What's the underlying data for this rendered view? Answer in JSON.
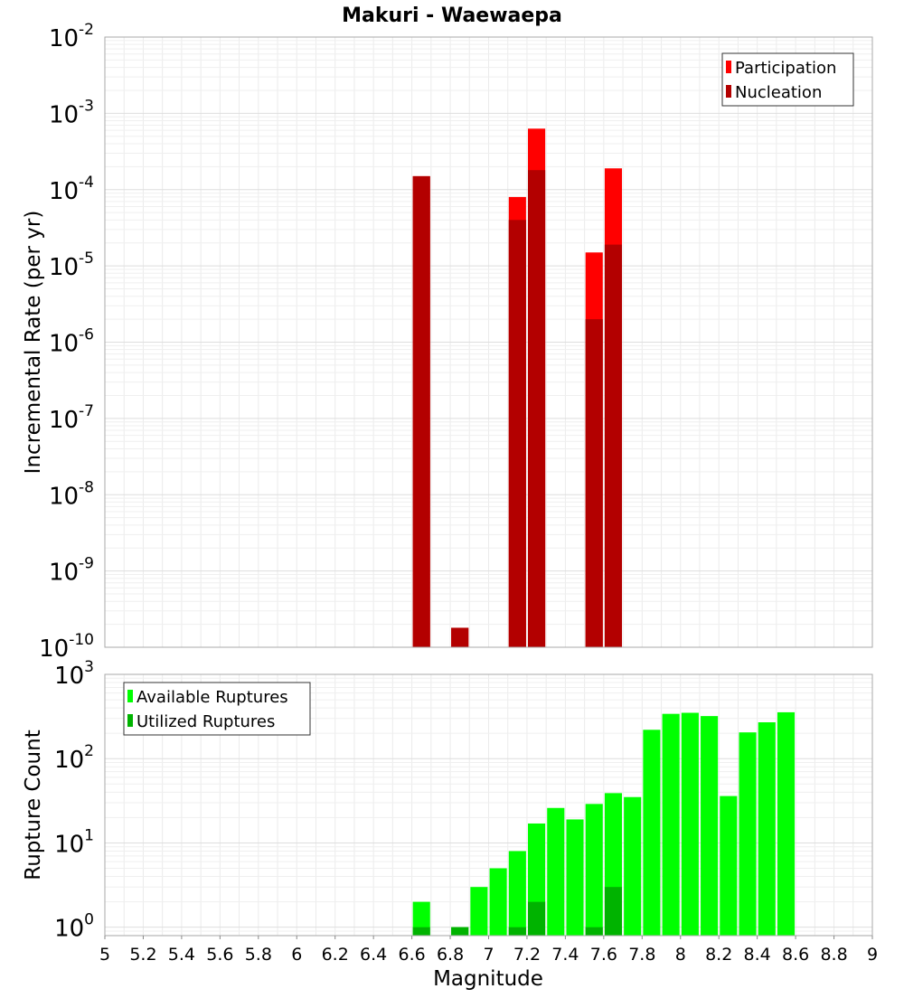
{
  "title": "Makuri - Waewaepa",
  "chart_data": [
    {
      "type": "bar",
      "name": "rate-panel",
      "scale": "log",
      "ylabel": "Incremental Rate (per yr)",
      "ylim_exp": [
        -10,
        -2
      ],
      "ytick_exps": [
        -10,
        -9,
        -8,
        -7,
        -6,
        -5,
        -4,
        -3,
        -2
      ],
      "legend_position": "top-right",
      "series": [
        {
          "name": "Participation",
          "color": "#ff0000",
          "points": [
            [
              6.65,
              0.00015
            ],
            [
              6.85,
              1.8e-10
            ],
            [
              7.15,
              8e-05
            ],
            [
              7.25,
              0.00063
            ],
            [
              7.55,
              1.5e-05
            ],
            [
              7.65,
              0.00019
            ]
          ]
        },
        {
          "name": "Nucleation",
          "color": "#b30000",
          "points": [
            [
              6.65,
              0.00015
            ],
            [
              6.85,
              1.8e-10
            ],
            [
              7.15,
              4e-05
            ],
            [
              7.25,
              0.00018
            ],
            [
              7.55,
              2e-06
            ],
            [
              7.65,
              1.9e-05
            ]
          ]
        }
      ]
    },
    {
      "type": "bar",
      "name": "count-panel",
      "scale": "log",
      "ylabel": "Rupture Count",
      "xlabel": "Magnitude",
      "ylim_exp": [
        -0.1,
        3
      ],
      "ytick_exps": [
        0,
        1,
        2,
        3
      ],
      "legend_position": "top-left",
      "series": [
        {
          "name": "Available Ruptures",
          "color": "#00ff00",
          "points": [
            [
              6.65,
              2
            ],
            [
              6.85,
              1
            ],
            [
              6.95,
              3
            ],
            [
              7.05,
              5
            ],
            [
              7.15,
              8
            ],
            [
              7.25,
              17
            ],
            [
              7.35,
              26
            ],
            [
              7.45,
              19
            ],
            [
              7.55,
              29
            ],
            [
              7.65,
              39
            ],
            [
              7.75,
              35
            ],
            [
              7.85,
              220
            ],
            [
              7.95,
              340
            ],
            [
              8.05,
              350
            ],
            [
              8.15,
              320
            ],
            [
              8.25,
              36
            ],
            [
              8.35,
              205
            ],
            [
              8.45,
              270
            ],
            [
              8.55,
              355
            ]
          ]
        },
        {
          "name": "Utilized Ruptures",
          "color": "#00b300",
          "points": [
            [
              6.65,
              1
            ],
            [
              6.85,
              1
            ],
            [
              7.15,
              1
            ],
            [
              7.25,
              2
            ],
            [
              7.55,
              1
            ],
            [
              7.65,
              3
            ]
          ]
        }
      ]
    }
  ],
  "x_axis": {
    "min": 5,
    "max": 9,
    "ticks": [
      "5",
      "5.2",
      "5.4",
      "5.6",
      "5.8",
      "6",
      "6.2",
      "6.4",
      "6.6",
      "6.8",
      "7",
      "7.2",
      "7.4",
      "7.6",
      "7.8",
      "8",
      "8.2",
      "8.4",
      "8.6",
      "8.8",
      "9"
    ],
    "label": "Magnitude"
  }
}
